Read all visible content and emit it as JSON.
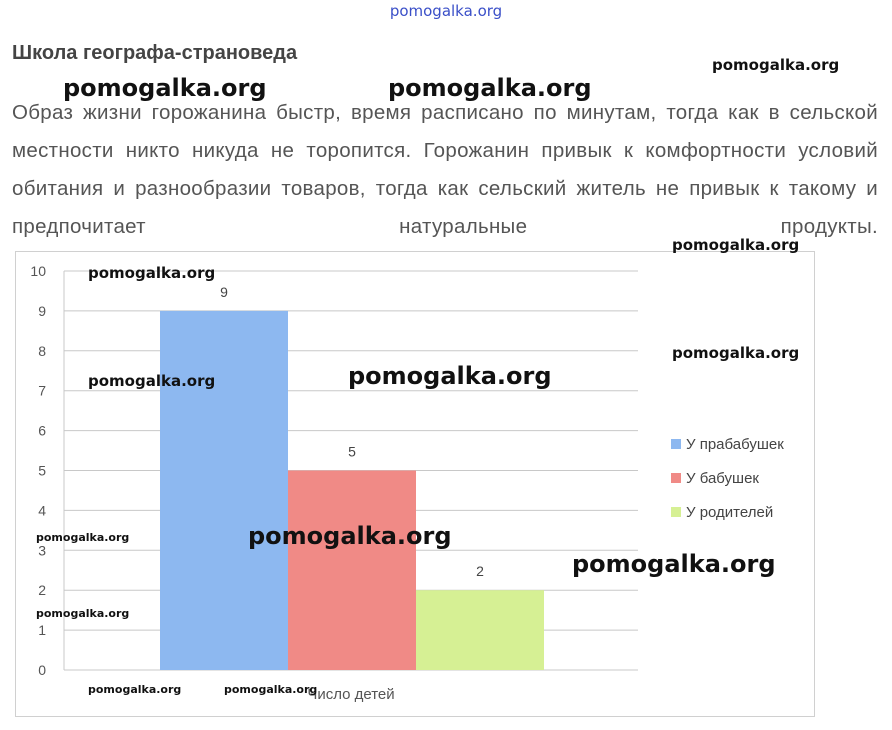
{
  "site_header": "pomogalka.org",
  "heading": "Школа географа-страноведа",
  "paragraph": "Образ жизни горожанина быстр, время расписано по минутам, тогда как в сельской местности никто никуда не торопится. Горожанин привык к комфортности условий обитания и разнообразии товаров, тогда как сельский житель не привык к такому и предпочитает натуральные продукты.",
  "watermark": "pomogalka.org",
  "chart_data": {
    "type": "bar",
    "xlabel": "Число детей",
    "ylabel": "",
    "ylim": [
      0,
      10
    ],
    "yticks": [
      0,
      1,
      2,
      3,
      4,
      5,
      6,
      7,
      8,
      9,
      10
    ],
    "grid": true,
    "legend_position": "right",
    "series": [
      {
        "name": "У прабабушек",
        "values": [
          9
        ],
        "color": "#8db8f0"
      },
      {
        "name": "У бабушек",
        "values": [
          5
        ],
        "color": "#f08a86"
      },
      {
        "name": "У родителей",
        "values": [
          2
        ],
        "color": "#d6f094"
      }
    ]
  }
}
